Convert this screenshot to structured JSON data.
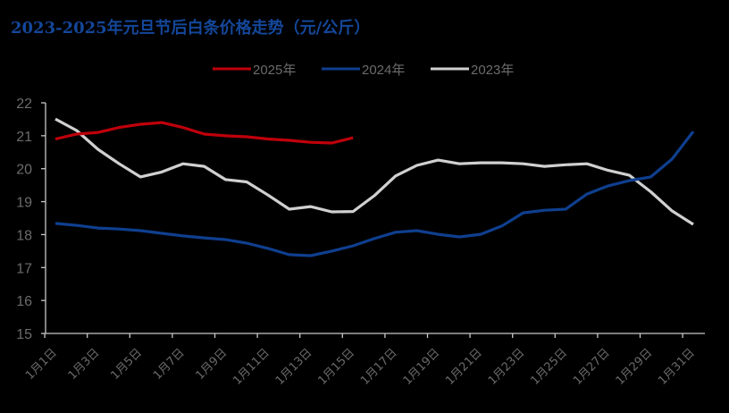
{
  "title": "2023-2025年元旦节后白条价格走势（元/公斤）",
  "colors": {
    "title": "#14479a",
    "series_2025": "#c0000b",
    "series_2024": "#0f3f8f",
    "series_2023": "#d0d0d0",
    "axis": "#c8c8c8",
    "label": "#6b6b6b",
    "background": "#000000"
  },
  "legend": {
    "items": [
      {
        "label": "2025年",
        "color": "#c0000b"
      },
      {
        "label": "2024年",
        "color": "#0f3f8f"
      },
      {
        "label": "2023年",
        "color": "#d0d0d0"
      }
    ]
  },
  "chart_data": {
    "type": "line",
    "title": "2023-2025年元旦节后白条价格走势（元/公斤）",
    "xlabel": "",
    "ylabel": "",
    "ylim": [
      15,
      22
    ],
    "yticks": [
      15,
      16,
      17,
      18,
      19,
      20,
      21,
      22
    ],
    "grid": false,
    "legend_position": "top",
    "categories": [
      "1月1日",
      "1月2日",
      "1月3日",
      "1月4日",
      "1月5日",
      "1月6日",
      "1月7日",
      "1月8日",
      "1月9日",
      "1月10日",
      "1月11日",
      "1月12日",
      "1月13日",
      "1月14日",
      "1月15日",
      "1月16日",
      "1月17日",
      "1月18日",
      "1月19日",
      "1月20日",
      "1月21日",
      "1月22日",
      "1月23日",
      "1月24日",
      "1月25日",
      "1月26日",
      "1月27日",
      "1月28日",
      "1月29日",
      "1月30日",
      "1月31日"
    ],
    "x_tick_labels": [
      "1月1日",
      "1月3日",
      "1月5日",
      "1月7日",
      "1月9日",
      "1月11日",
      "1月13日",
      "1月15日",
      "1月17日",
      "1月19日",
      "1月21日",
      "1月23日",
      "1月25日",
      "1月27日",
      "1月29日",
      "1月31日"
    ],
    "series": [
      {
        "name": "2025年",
        "color": "#c0000b",
        "values": [
          20.9,
          21.05,
          21.1,
          21.25,
          21.35,
          21.4,
          21.25,
          21.05,
          21.0,
          20.97,
          20.9,
          20.86,
          20.8,
          20.78,
          20.94,
          null,
          null,
          null,
          null,
          null,
          null,
          null,
          null,
          null,
          null,
          null,
          null,
          null,
          null,
          null,
          null
        ]
      },
      {
        "name": "2024年",
        "color": "#0f3f8f",
        "values": [
          18.34,
          18.28,
          18.2,
          18.17,
          18.12,
          18.04,
          17.96,
          17.9,
          17.85,
          17.74,
          17.58,
          17.39,
          17.36,
          17.5,
          17.66,
          17.88,
          18.07,
          18.12,
          18.01,
          17.93,
          18.01,
          18.26,
          18.66,
          18.74,
          18.77,
          19.23,
          19.48,
          19.64,
          19.75,
          20.29,
          21.13
        ]
      },
      {
        "name": "2023年",
        "color": "#d0d0d0",
        "values": [
          21.51,
          21.16,
          20.59,
          20.15,
          19.75,
          19.9,
          20.15,
          20.07,
          19.67,
          19.6,
          19.2,
          18.77,
          18.85,
          18.69,
          18.7,
          19.18,
          19.78,
          20.1,
          20.26,
          20.15,
          20.18,
          20.18,
          20.15,
          20.07,
          20.12,
          20.15,
          19.95,
          19.8,
          19.3,
          18.72,
          18.31
        ]
      }
    ]
  }
}
